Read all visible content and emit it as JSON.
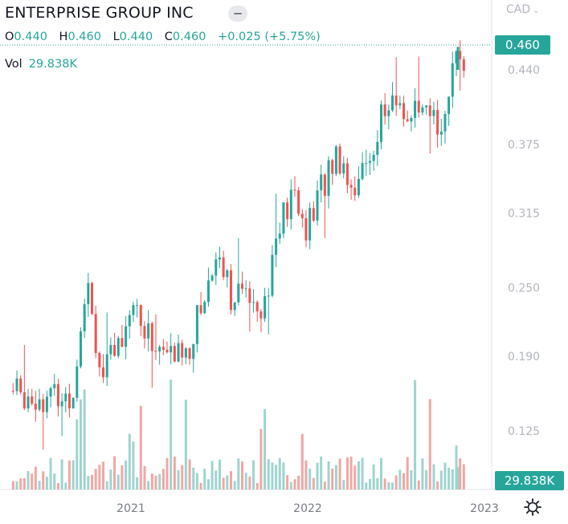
{
  "header": {
    "title": "ENTERPRISE GROUP INC",
    "currency": "CAD",
    "ohlc": {
      "o_label": "O",
      "o_value": "0.440",
      "h_label": "H",
      "h_value": "0.460",
      "l_label": "L",
      "l_value": "0.440",
      "c_label": "C",
      "c_value": "0.460",
      "change": "+0.025 (+5.75%)"
    },
    "vol_label": "Vol",
    "vol_value": "29.838K"
  },
  "tags": {
    "last_price": "0.460",
    "last_volume": "29.838K"
  },
  "colors": {
    "up": "#26a69a",
    "down": "#ef5350",
    "vol_up": "#9ed4cf",
    "vol_down": "#f0a7a4"
  },
  "chart_data": {
    "type": "candlestick",
    "title": "ENTERPRISE GROUP INC",
    "currency": "CAD",
    "y_ticks": [
      "0.440",
      "0.375",
      "0.315",
      "0.250",
      "0.190",
      "0.125"
    ],
    "x_ticks": [
      "2021",
      "2022",
      "2023"
    ],
    "last_close": 0.46,
    "last_volume": "29.838K",
    "candle_anchors": [
      [
        "2020-05",
        0.125,
        0.16
      ],
      [
        "2020-07",
        0.17,
        0.155
      ],
      [
        "2020-09",
        0.155,
        0.155
      ],
      [
        "2020-10",
        0.165,
        0.265
      ],
      [
        "2020-11",
        0.235,
        0.17
      ],
      [
        "2020-12",
        0.175,
        0.195
      ],
      [
        "2021-01",
        0.2,
        0.24
      ],
      [
        "2021-02",
        0.235,
        0.21
      ],
      [
        "2021-03",
        0.215,
        0.195
      ],
      [
        "2021-04",
        0.2,
        0.19
      ],
      [
        "2021-05",
        0.185,
        0.2
      ],
      [
        "2021-06",
        0.205,
        0.245
      ],
      [
        "2021-07",
        0.25,
        0.285
      ],
      [
        "2021-08",
        0.265,
        0.235
      ],
      [
        "2021-09",
        0.24,
        0.25
      ],
      [
        "2021-10",
        0.245,
        0.235
      ],
      [
        "2021-11",
        0.26,
        0.3
      ],
      [
        "2021-12",
        0.31,
        0.33
      ],
      [
        "2022-01",
        0.315,
        0.3
      ],
      [
        "2022-02",
        0.31,
        0.34
      ],
      [
        "2022-03",
        0.355,
        0.37
      ],
      [
        "2022-04",
        0.36,
        0.34
      ],
      [
        "2022-05",
        0.345,
        0.355
      ],
      [
        "2022-06",
        0.385,
        0.4
      ],
      [
        "2022-07",
        0.4,
        0.41
      ],
      [
        "2022-08",
        0.395,
        0.4
      ],
      [
        "2022-09",
        0.405,
        0.395
      ],
      [
        "2022-10",
        0.39,
        0.395
      ],
      [
        "2022-11",
        0.42,
        0.44
      ],
      [
        "2022-12",
        0.44,
        0.46
      ]
    ]
  }
}
